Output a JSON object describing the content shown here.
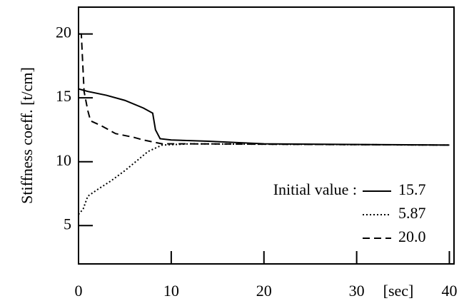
{
  "chart_data": {
    "type": "line",
    "ylabel": "Stiffness coeff. [t/cm]",
    "xlabel": "[sec]",
    "legend_title": "Initial value :",
    "xlim": [
      0,
      40.5
    ],
    "xticks": [
      0,
      10,
      20,
      30,
      40
    ],
    "ylim": [
      2,
      22.1
    ],
    "yticks": [
      5,
      10,
      15,
      20
    ],
    "series": [
      {
        "name": "15.7",
        "color": "#000000",
        "style": "solid",
        "x": [
          0,
          1,
          3,
          5,
          7,
          8,
          8.3,
          8.8,
          10,
          14,
          20,
          40
        ],
        "values": [
          15.7,
          15.5,
          15.2,
          14.8,
          14.2,
          13.8,
          12.5,
          11.8,
          11.7,
          11.6,
          11.4,
          11.3
        ]
      },
      {
        "name": "5.87",
        "color": "#000000",
        "style": "dotted",
        "x": [
          0,
          0.5,
          1,
          2,
          3.5,
          5,
          6.5,
          7.5,
          9,
          12,
          40
        ],
        "values": [
          5.87,
          6.3,
          7.3,
          7.8,
          8.5,
          9.3,
          10.2,
          10.8,
          11.3,
          11.4,
          11.3
        ]
      },
      {
        "name": "20.0",
        "color": "#000000",
        "style": "dashed",
        "x": [
          0,
          0.3,
          0.6,
          1,
          1.3,
          2.5,
          4,
          6,
          7,
          9,
          12,
          40
        ],
        "values": [
          20.0,
          20.0,
          15.5,
          14.0,
          13.2,
          12.8,
          12.2,
          11.9,
          11.7,
          11.4,
          11.4,
          11.3
        ]
      }
    ]
  }
}
